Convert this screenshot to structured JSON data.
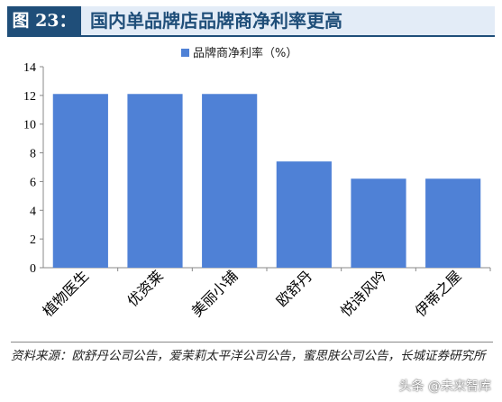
{
  "header": {
    "figure_label": "图 23：",
    "title": "国内单品牌店品牌商净利率更高"
  },
  "chart_data": {
    "type": "bar",
    "categories": [
      "植物医生",
      "优资莱",
      "美丽小铺",
      "欧舒丹",
      "悦诗风吟",
      "伊蒂之屋"
    ],
    "series": [
      {
        "name": "品牌商净利率（%）",
        "values": [
          12.1,
          12.1,
          12.1,
          7.4,
          6.2,
          6.2
        ]
      }
    ],
    "ylim": [
      0,
      14
    ],
    "yticks": [
      0,
      2,
      4,
      6,
      8,
      10,
      12,
      14
    ],
    "grid": false,
    "legend": "top",
    "color": "#4f81d6"
  },
  "footer": {
    "source": "资料来源：欧舒丹公司公告，爱茉莉太平洋公司公告，蜜思肤公司公告，长城证券研究所",
    "watermark": "头条 @未来智库"
  }
}
